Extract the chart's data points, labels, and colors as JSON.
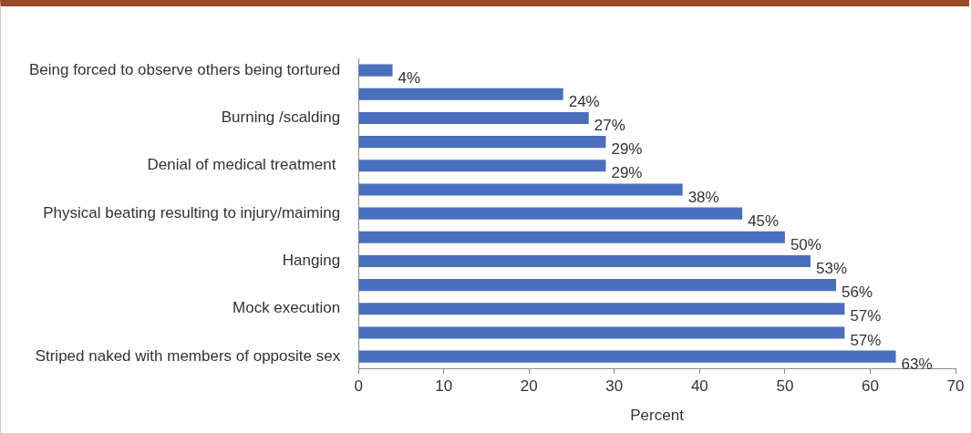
{
  "chart_data": {
    "type": "bar",
    "orientation": "horizontal",
    "categories": [
      "Being forced to observe others being tortured",
      null,
      "Burning /scalding",
      null,
      "Denial of medical treatment ",
      null,
      "Physical beating resulting to injury/maiming",
      null,
      "Hanging",
      null,
      "Mock execution",
      null,
      "Striped naked with members of opposite sex"
    ],
    "values": [
      4,
      24,
      27,
      29,
      29,
      38,
      45,
      50,
      53,
      56,
      57,
      57,
      63
    ],
    "value_labels": [
      "4%",
      "24%",
      "27%",
      "29%",
      "29%",
      "38%",
      "45%",
      "50%",
      "53%",
      "56%",
      "57%",
      "57%",
      "63%"
    ],
    "color": "#4a6fbd",
    "xlabel": "Percent",
    "xlim": [
      0,
      70
    ],
    "xticks": [
      0,
      10,
      20,
      30,
      40,
      50,
      60,
      70
    ],
    "grid": false,
    "legend": false
  }
}
